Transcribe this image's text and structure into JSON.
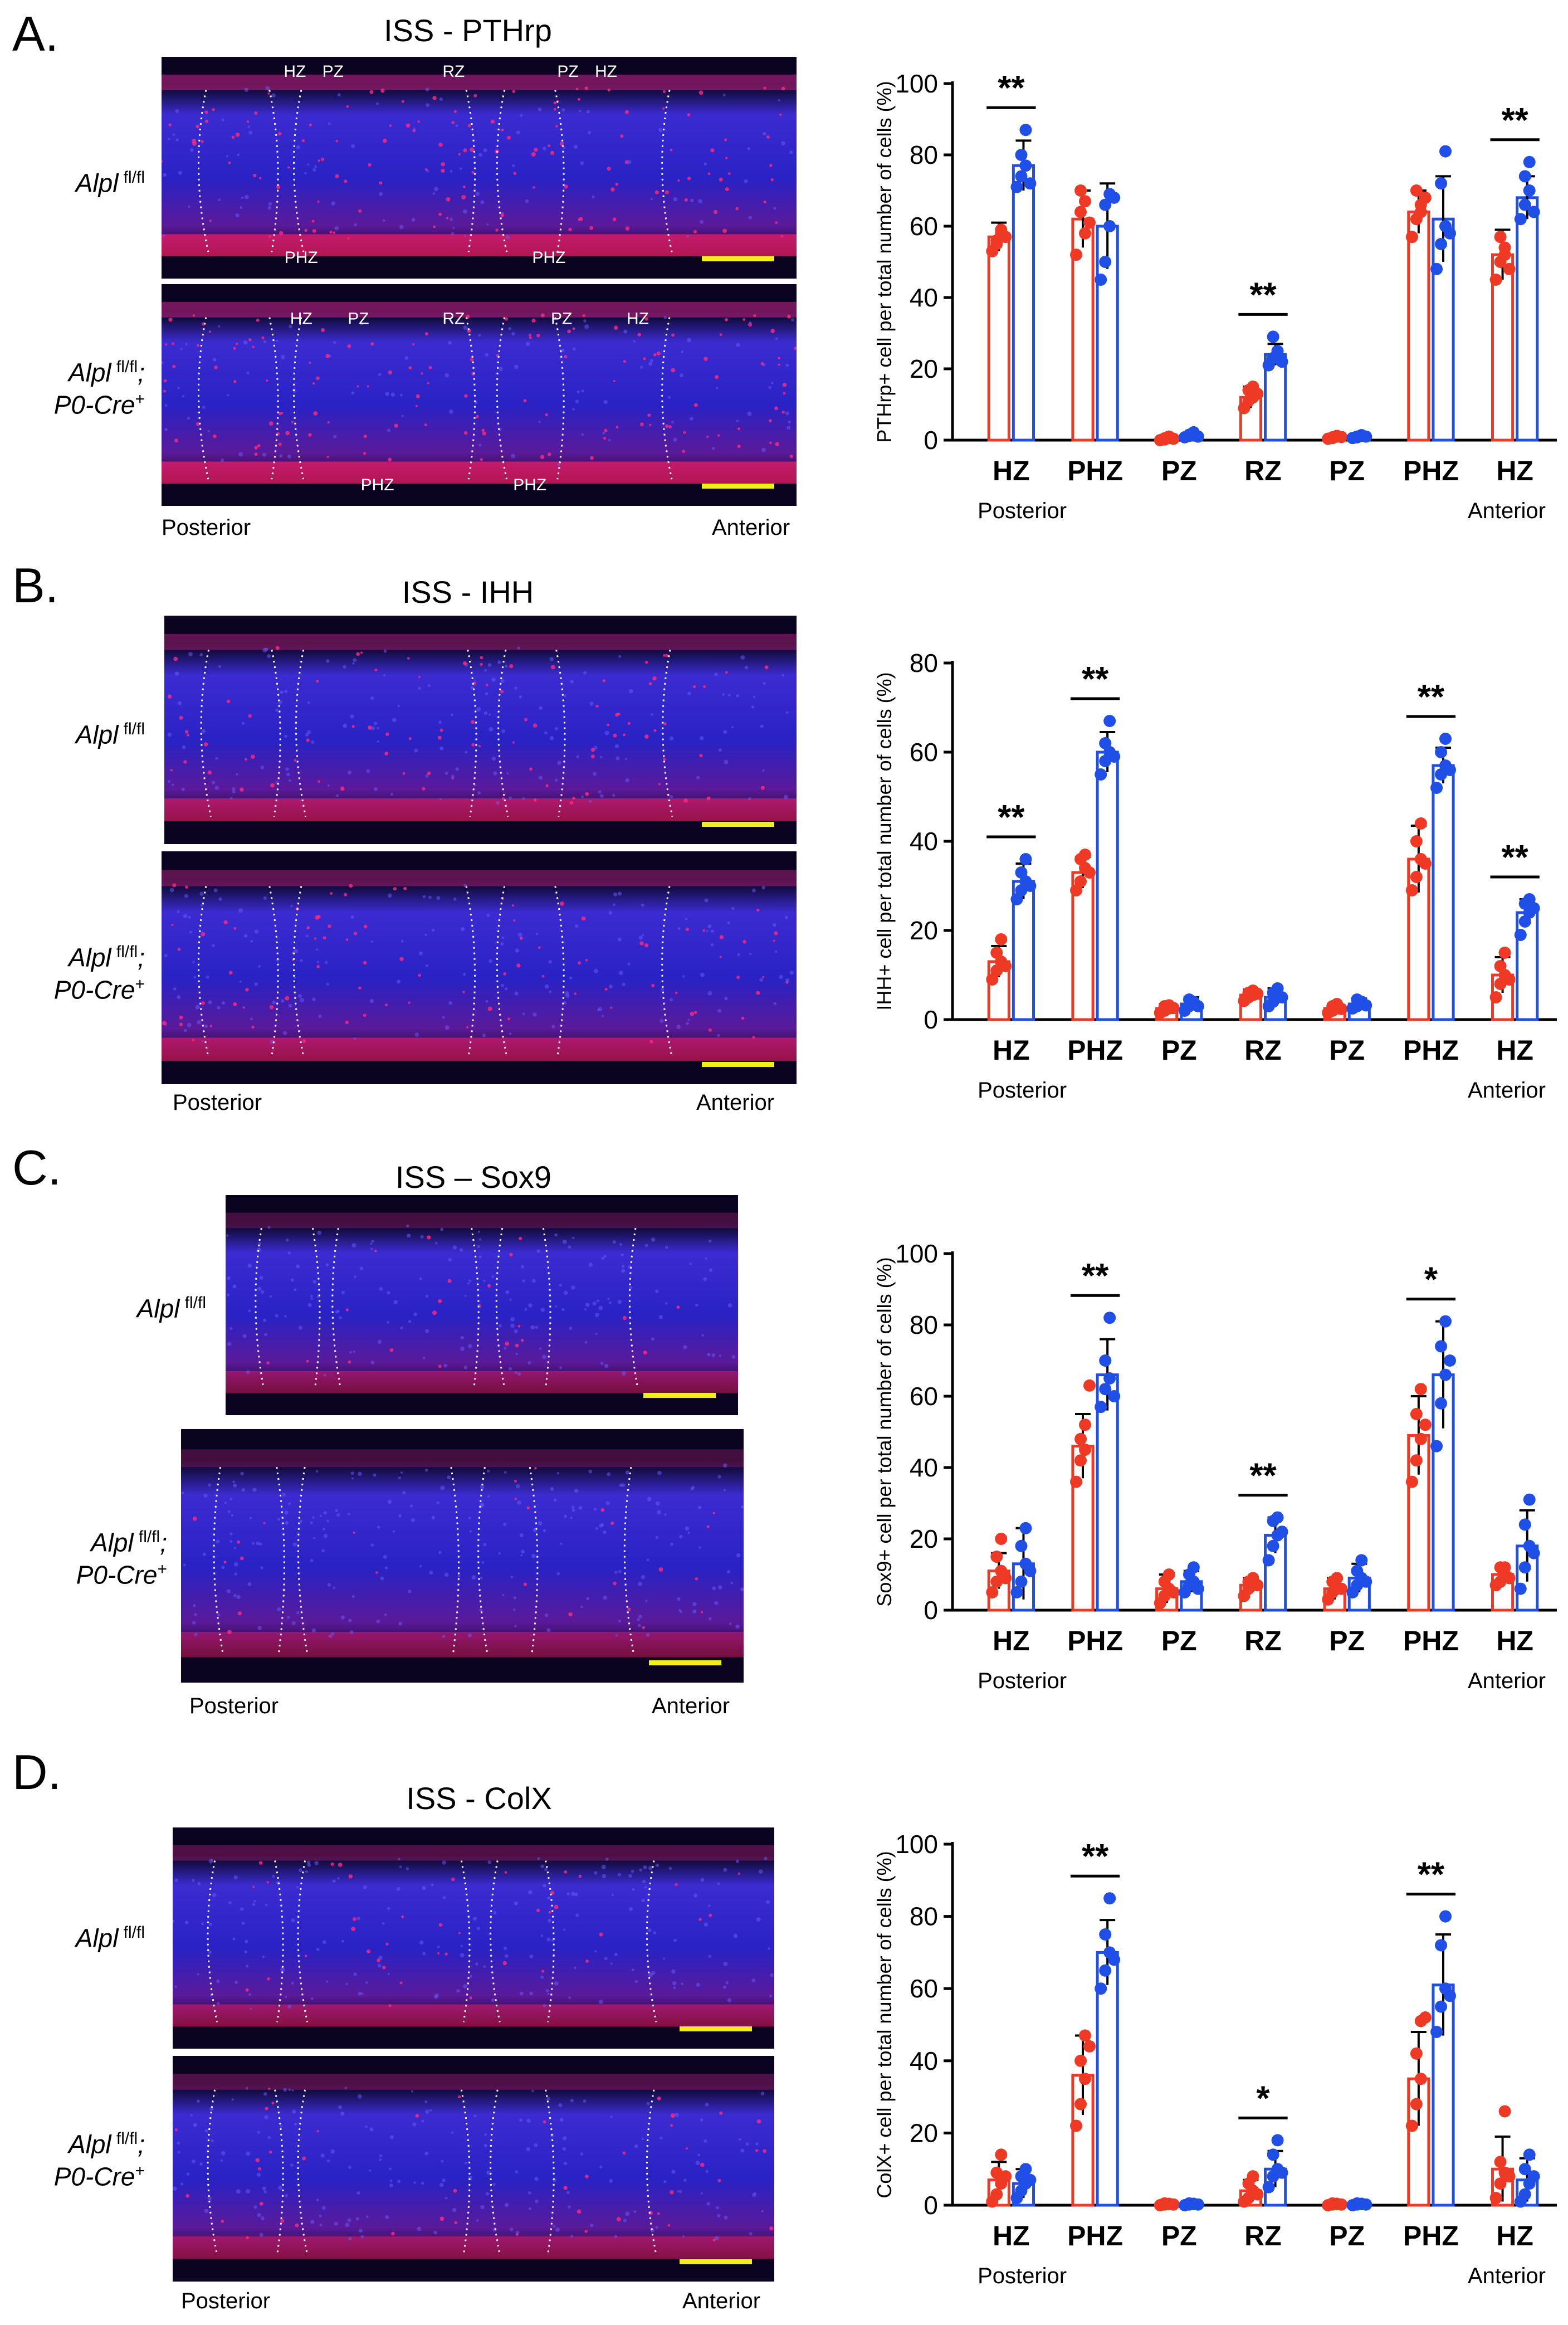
{
  "colors": {
    "control": "#ee3a24",
    "mutant": "#1f4fe6",
    "scale_bar": "#f2ee1c"
  },
  "panels": [
    {
      "letter": "A.",
      "title": "ISS - PTHrp",
      "row1_label": "Alpl",
      "row1_sup": "fl/fl",
      "row2_label_a": "Alpl",
      "row2_sup": "fl/fl",
      "row2_label_b": "P0-Cre",
      "row2_sup_b": "+",
      "posterior": "Posterior",
      "anterior": "Anterior",
      "zones_top": [
        "HZ",
        "PZ",
        "RZ",
        "PZ",
        "HZ"
      ],
      "zones_bottom": [
        "PHZ",
        "PHZ"
      ],
      "stain": "pthrp"
    },
    {
      "letter": "B.",
      "title": "ISS - IHH",
      "row1_label": "Alpl",
      "row1_sup": "fl/fl",
      "row2_label_a": "Alpl",
      "row2_sup": "fl/fl",
      "row2_label_b": "P0-Cre",
      "row2_sup_b": "+",
      "posterior": "Posterior",
      "anterior": "Anterior",
      "stain": "ihh"
    },
    {
      "letter": "C.",
      "title": "ISS – Sox9",
      "row1_label": "Alpl",
      "row1_sup": "fl/fl",
      "row2_label_a": "Alpl",
      "row2_sup": "fl/fl",
      "row2_label_b": "P0-Cre",
      "row2_sup_b": "+",
      "posterior": "Posterior",
      "anterior": "Anterior",
      "stain": "sox9"
    },
    {
      "letter": "D.",
      "title": "ISS - ColX",
      "row1_label": "Alpl",
      "row1_sup": "fl/fl",
      "row2_label_a": "Alpl",
      "row2_sup": "fl/fl",
      "row2_label_b": "P0-Cre",
      "row2_sup_b": "+",
      "posterior": "Posterior",
      "anterior": "Anterior",
      "stain": "colx"
    }
  ],
  "chart_data": [
    {
      "type": "bar",
      "panel": "A",
      "ylabel": "PTHrp+ cell per total number of cells (%)",
      "categories": [
        "HZ",
        "PHZ",
        "PZ",
        "RZ",
        "PZ",
        "PHZ",
        "HZ"
      ],
      "ylim": [
        0,
        100
      ],
      "yticks": [
        0,
        20,
        40,
        60,
        80,
        100
      ],
      "posterior_label": "Posterior",
      "anterior_label": "Anterior",
      "series": [
        {
          "name": "Alpl fl/fl",
          "values": [
            57,
            62,
            0.5,
            12,
            0.8,
            64,
            52
          ],
          "errors": [
            4,
            8,
            0.5,
            3,
            0.5,
            6,
            7
          ],
          "points": [
            [
              53,
              56,
              58,
              55,
              59,
              57
            ],
            [
              52,
              64,
              67,
              70,
              58,
              61
            ],
            [
              0,
              0.5,
              1,
              0.2,
              0.6,
              0.4
            ],
            [
              9,
              11,
              12,
              14,
              15,
              13
            ],
            [
              0.4,
              0.8,
              1,
              0.6,
              1.2,
              0.9
            ],
            [
              57,
              62,
              66,
              70,
              64,
              68
            ],
            [
              45,
              50,
              54,
              57,
              52,
              48
            ]
          ]
        },
        {
          "name": "Alpl fl/fl; P0-Cre+",
          "values": [
            77,
            60,
            1.5,
            24,
            1.0,
            62,
            68
          ],
          "errors": [
            7,
            12,
            0.8,
            3,
            0.5,
            12,
            6
          ],
          "points": [
            [
              71,
              74,
              77,
              80,
              87,
              72
            ],
            [
              45,
              50,
              60,
              66,
              69,
              68
            ],
            [
              0.8,
              1.5,
              2.2,
              1.2,
              1.8,
              1.0
            ],
            [
              21,
              23,
              25,
              29,
              24,
              22
            ],
            [
              0.6,
              1,
              1.4,
              0.8,
              1.2,
              1.0
            ],
            [
              48,
              55,
              60,
              72,
              81,
              58
            ],
            [
              62,
              66,
              70,
              74,
              78,
              64
            ]
          ]
        }
      ],
      "significance": [
        {
          "category_index": 0,
          "label": "**"
        },
        {
          "category_index": 3,
          "label": "**"
        },
        {
          "category_index": 6,
          "label": "**"
        }
      ]
    },
    {
      "type": "bar",
      "panel": "B",
      "ylabel": "IHH+ cell per total number of cells (%)",
      "categories": [
        "HZ",
        "PHZ",
        "PZ",
        "RZ",
        "PZ",
        "PHZ",
        "HZ"
      ],
      "ylim": [
        0,
        80
      ],
      "yticks": [
        0,
        20,
        40,
        60,
        80
      ],
      "posterior_label": "Posterior",
      "anterior_label": "Anterior",
      "series": [
        {
          "name": "Alpl fl/fl",
          "values": [
            13,
            33,
            2.5,
            5.5,
            2.5,
            36,
            10
          ],
          "errors": [
            3.5,
            3.5,
            1,
            1.2,
            1,
            7.5,
            4
          ],
          "points": [
            [
              9,
              11,
              13,
              15,
              18,
              12
            ],
            [
              29,
              31,
              34,
              36,
              37,
              33
            ],
            [
              1.5,
              2,
              2.5,
              3,
              3.2,
              2.6
            ],
            [
              4.2,
              5,
              5.5,
              6,
              6.5,
              5.8
            ],
            [
              1.5,
              2,
              2.5,
              3,
              3.5,
              2.4
            ],
            [
              29,
              32,
              36,
              40,
              44,
              35
            ],
            [
              5,
              8,
              10,
              12,
              15,
              9
            ]
          ]
        },
        {
          "name": "Alpl fl/fl; P0-Cre+",
          "values": [
            31,
            60,
            3.5,
            5,
            3.5,
            57,
            24
          ],
          "errors": [
            4,
            4.5,
            1.5,
            2,
            1.2,
            4,
            3
          ],
          "points": [
            [
              27,
              29,
              31,
              33,
              36,
              30
            ],
            [
              55,
              58,
              60,
              62,
              67,
              59
            ],
            [
              2,
              3,
              3.5,
              4.5,
              4,
              3
            ],
            [
              3,
              4,
              5,
              6,
              7,
              5
            ],
            [
              2.5,
              3,
              3.5,
              4.5,
              4,
              3.2
            ],
            [
              52,
              55,
              57,
              60,
              63,
              56
            ],
            [
              19,
              22,
              24,
              26,
              27,
              25
            ]
          ]
        }
      ],
      "significance": [
        {
          "category_index": 0,
          "label": "**"
        },
        {
          "category_index": 1,
          "label": "**"
        },
        {
          "category_index": 5,
          "label": "**"
        },
        {
          "category_index": 6,
          "label": "**"
        }
      ]
    },
    {
      "type": "bar",
      "panel": "C",
      "ylabel": "Sox9+ cell per total number of cells (%)",
      "categories": [
        "HZ",
        "PHZ",
        "PZ",
        "RZ",
        "PZ",
        "PHZ",
        "HZ"
      ],
      "ylim": [
        0,
        100
      ],
      "yticks": [
        0,
        20,
        40,
        60,
        80,
        100
      ],
      "posterior_label": "Posterior",
      "anterior_label": "Anterior",
      "series": [
        {
          "name": "Alpl fl/fl",
          "values": [
            11,
            46,
            6,
            7,
            6,
            49,
            10
          ],
          "errors": [
            5,
            9,
            4,
            2,
            3,
            11,
            2
          ],
          "points": [
            [
              5,
              8,
              11,
              15,
              20,
              9
            ],
            [
              36,
              42,
              45,
              48,
              52,
              63
            ],
            [
              2,
              4,
              6,
              8,
              10,
              5
            ],
            [
              4,
              6,
              7,
              8,
              9,
              7
            ],
            [
              3,
              5,
              6,
              8,
              9,
              6
            ],
            [
              36,
              42,
              48,
              55,
              62,
              52
            ],
            [
              7,
              8,
              10,
              12,
              12,
              9
            ]
          ]
        },
        {
          "name": "Alpl fl/fl; P0-Cre+",
          "values": [
            13,
            66,
            8,
            21,
            9,
            66,
            18
          ],
          "errors": [
            10,
            10,
            3,
            5,
            4,
            15,
            10
          ],
          "points": [
            [
              5,
              8,
              13,
              18,
              23,
              11
            ],
            [
              57,
              62,
              65,
              70,
              82,
              60
            ],
            [
              5,
              7,
              8,
              10,
              12,
              6
            ],
            [
              14,
              18,
              21,
              25,
              26,
              22
            ],
            [
              5,
              7,
              9,
              11,
              14,
              8
            ],
            [
              46,
              58,
              66,
              74,
              81,
              70
            ],
            [
              6,
              12,
              18,
              24,
              31,
              16
            ]
          ]
        }
      ],
      "significance": [
        {
          "category_index": 1,
          "label": "**"
        },
        {
          "category_index": 3,
          "label": "**"
        },
        {
          "category_index": 5,
          "label": "*"
        }
      ]
    },
    {
      "type": "bar",
      "panel": "D",
      "ylabel": "ColX+ cell per total number of cells (%)",
      "categories": [
        "HZ",
        "PHZ",
        "PZ",
        "RZ",
        "PZ",
        "PHZ",
        "HZ"
      ],
      "ylim": [
        0,
        100
      ],
      "yticks": [
        0,
        20,
        40,
        60,
        80,
        100
      ],
      "posterior_label": "Posterior",
      "anterior_label": "Anterior",
      "series": [
        {
          "name": "Alpl fl/fl",
          "values": [
            7,
            36,
            0.3,
            4,
            0.3,
            35,
            10
          ],
          "errors": [
            5,
            11,
            0.3,
            3,
            0.3,
            13,
            9
          ],
          "points": [
            [
              1,
              3,
              6,
              9,
              14,
              8
            ],
            [
              22,
              28,
              35,
              40,
              47,
              44
            ],
            [
              0,
              0.2,
              0.4,
              0.5,
              0.3,
              0.2
            ],
            [
              1,
              2,
              4,
              6,
              8,
              3
            ],
            [
              0,
              0.2,
              0.4,
              0.5,
              0.3,
              0.2
            ],
            [
              22,
              28,
              35,
              42,
              51,
              52
            ],
            [
              2,
              6,
              9,
              12,
              26,
              8
            ]
          ]
        },
        {
          "name": "Alpl fl/fl; P0-Cre+",
          "values": [
            6,
            70,
            0.3,
            10,
            0.3,
            61,
            7
          ],
          "errors": [
            4,
            9,
            0.3,
            5,
            0.3,
            14,
            6
          ],
          "points": [
            [
              2,
              4,
              6,
              8,
              10,
              7
            ],
            [
              60,
              65,
              70,
              75,
              85,
              68
            ],
            [
              0,
              0.2,
              0.4,
              0.5,
              0.3,
              0.2
            ],
            [
              5,
              8,
              10,
              14,
              18,
              9
            ],
            [
              0,
              0.2,
              0.4,
              0.5,
              0.3,
              0.2
            ],
            [
              48,
              55,
              60,
              72,
              80,
              58
            ],
            [
              1,
              3,
              6,
              10,
              14,
              8
            ]
          ]
        }
      ],
      "significance": [
        {
          "category_index": 1,
          "label": "**"
        },
        {
          "category_index": 3,
          "label": "*"
        },
        {
          "category_index": 5,
          "label": "**"
        }
      ]
    }
  ]
}
